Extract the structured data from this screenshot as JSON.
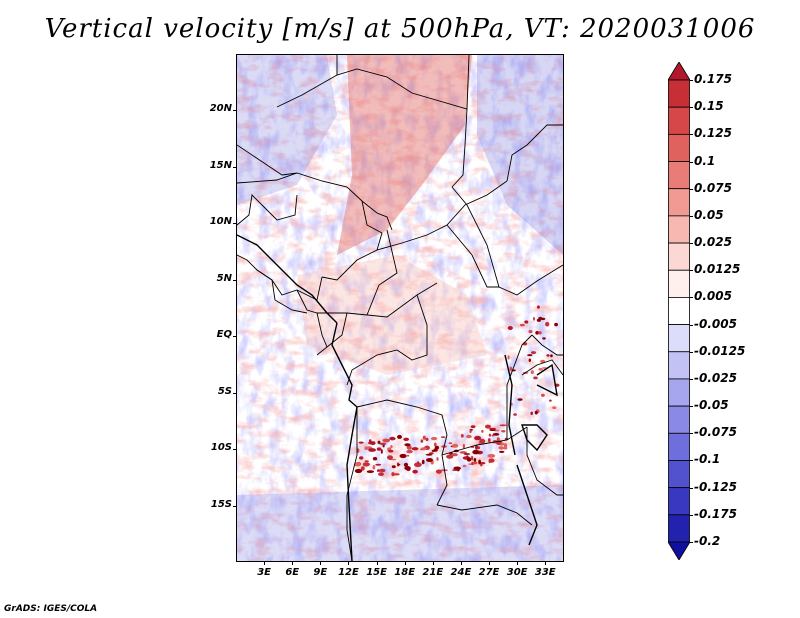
{
  "title": "Vertical velocity [m/s] at 500hPa, VT: 2020031006",
  "footer": "GrADS: IGES/COLA",
  "map": {
    "region": "Central Africa",
    "variable": "Vertical velocity",
    "units": "m/s",
    "level": "500hPa",
    "valid_time": "2020031006",
    "lon_range": [
      0,
      35
    ],
    "lat_range": [
      -20,
      25
    ],
    "lat_ticks": [
      {
        "value": 20,
        "label": "20N"
      },
      {
        "value": 15,
        "label": "15N"
      },
      {
        "value": 10,
        "label": "10N"
      },
      {
        "value": 5,
        "label": "5N"
      },
      {
        "value": 0,
        "label": "EQ"
      },
      {
        "value": -5,
        "label": "5S"
      },
      {
        "value": -10,
        "label": "10S"
      },
      {
        "value": -15,
        "label": "15S"
      }
    ],
    "lon_ticks": [
      {
        "value": 3,
        "label": "3E"
      },
      {
        "value": 6,
        "label": "6E"
      },
      {
        "value": 9,
        "label": "9E"
      },
      {
        "value": 12,
        "label": "12E"
      },
      {
        "value": 15,
        "label": "15E"
      },
      {
        "value": 18,
        "label": "18E"
      },
      {
        "value": 21,
        "label": "21E"
      },
      {
        "value": 24,
        "label": "24E"
      },
      {
        "value": 27,
        "label": "27E"
      },
      {
        "value": 30,
        "label": "30E"
      },
      {
        "value": 33,
        "label": "33E"
      }
    ]
  },
  "colorbar": {
    "labels": [
      "0.175",
      "0.15",
      "0.125",
      "0.1",
      "0.075",
      "0.05",
      "0.025",
      "0.0125",
      "0.005",
      "-0.005",
      "-0.0125",
      "-0.025",
      "-0.05",
      "-0.075",
      "-0.1",
      "-0.125",
      "-0.175",
      "-0.2"
    ],
    "colors": [
      "#b2182b",
      "#c62f36",
      "#d6474a",
      "#e0625f",
      "#e97c77",
      "#f09a93",
      "#f6b8b0",
      "#fbd8d3",
      "#fff0ee",
      "#ffffff",
      "#dcdcfb",
      "#c2c2f5",
      "#a6a6ee",
      "#8a8ae6",
      "#6e6edc",
      "#5252cf",
      "#3838c0",
      "#2222ae",
      "#1010a0"
    ]
  }
}
